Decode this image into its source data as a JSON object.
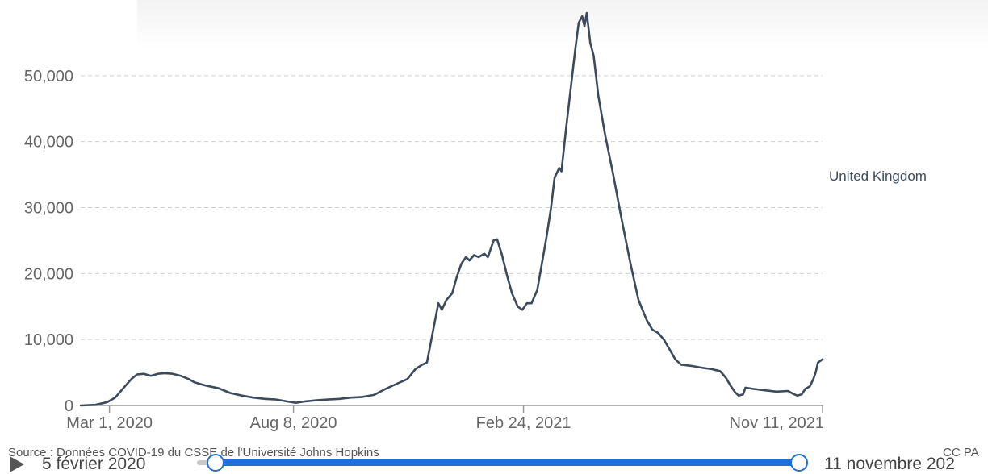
{
  "chart_data": {
    "type": "line",
    "title": "",
    "xlabel": "",
    "ylabel": "",
    "x_ticks": [
      "Mar 1, 2020",
      "Aug 8, 2020",
      "Feb 24, 2021",
      "Nov 11, 2021"
    ],
    "x_range": [
      "2020-02-05",
      "2021-11-11"
    ],
    "y_ticks": [
      "0",
      "10,000",
      "20,000",
      "30,000",
      "40,000",
      "50,000"
    ],
    "ylim": [
      0,
      60000
    ],
    "grid": true,
    "series": [
      {
        "name": "United Kingdom",
        "color": "#3c4a5e",
        "points": [
          [
            "2020-02-05",
            0
          ],
          [
            "2020-02-18",
            100
          ],
          [
            "2020-02-28",
            500
          ],
          [
            "2020-03-06",
            1200
          ],
          [
            "2020-03-13",
            2600
          ],
          [
            "2020-03-20",
            4000
          ],
          [
            "2020-03-25",
            4700
          ],
          [
            "2020-03-31",
            4800
          ],
          [
            "2020-04-06",
            4500
          ],
          [
            "2020-04-12",
            4800
          ],
          [
            "2020-04-18",
            4900
          ],
          [
            "2020-04-25",
            4800
          ],
          [
            "2020-05-02",
            4500
          ],
          [
            "2020-05-09",
            4000
          ],
          [
            "2020-05-14",
            3500
          ],
          [
            "2020-05-24",
            3000
          ],
          [
            "2020-06-04",
            2600
          ],
          [
            "2020-06-14",
            1900
          ],
          [
            "2020-06-24",
            1500
          ],
          [
            "2020-07-04",
            1200
          ],
          [
            "2020-07-14",
            1000
          ],
          [
            "2020-07-24",
            900
          ],
          [
            "2020-08-03",
            600
          ],
          [
            "2020-08-10",
            400
          ],
          [
            "2020-08-17",
            600
          ],
          [
            "2020-08-28",
            800
          ],
          [
            "2020-09-07",
            900
          ],
          [
            "2020-09-17",
            1000
          ],
          [
            "2020-09-27",
            1200
          ],
          [
            "2020-10-07",
            1300
          ],
          [
            "2020-10-17",
            1600
          ],
          [
            "2020-10-27",
            2500
          ],
          [
            "2020-11-06",
            3300
          ],
          [
            "2020-11-15",
            4000
          ],
          [
            "2020-11-22",
            5500
          ],
          [
            "2020-11-28",
            6200
          ],
          [
            "2020-12-02",
            6500
          ],
          [
            "2020-12-07",
            11000
          ],
          [
            "2020-12-12",
            15500
          ],
          [
            "2020-12-15",
            14500
          ],
          [
            "2020-12-19",
            16000
          ],
          [
            "2020-12-24",
            17000
          ],
          [
            "2020-12-28",
            19500
          ],
          [
            "2021-01-01",
            21500
          ],
          [
            "2021-01-05",
            22500
          ],
          [
            "2021-01-08",
            22000
          ],
          [
            "2021-01-12",
            22800
          ],
          [
            "2021-01-16",
            22500
          ],
          [
            "2021-01-21",
            23000
          ],
          [
            "2021-01-24",
            22500
          ],
          [
            "2021-01-29",
            25000
          ],
          [
            "2021-02-01",
            25200
          ],
          [
            "2021-02-05",
            23000
          ],
          [
            "2021-02-10",
            19500
          ],
          [
            "2021-02-14",
            17000
          ],
          [
            "2021-02-19",
            15000
          ],
          [
            "2021-02-23",
            14500
          ],
          [
            "2021-02-27",
            15500
          ],
          [
            "2021-03-03",
            15500
          ],
          [
            "2021-03-08",
            17500
          ],
          [
            "2021-03-12",
            21500
          ],
          [
            "2021-03-16",
            25500
          ],
          [
            "2021-03-20",
            30000
          ],
          [
            "2021-03-23",
            34500
          ],
          [
            "2021-03-27",
            36000
          ],
          [
            "2021-03-29",
            35500
          ],
          [
            "2021-04-02",
            42000
          ],
          [
            "2021-04-06",
            48000
          ],
          [
            "2021-04-10",
            54000
          ],
          [
            "2021-04-13",
            58000
          ],
          [
            "2021-04-16",
            59000
          ],
          [
            "2021-04-18",
            57500
          ],
          [
            "2021-04-20",
            59500
          ],
          [
            "2021-04-23",
            55000
          ],
          [
            "2021-04-26",
            53000
          ],
          [
            "2021-04-30",
            47000
          ],
          [
            "2021-05-06",
            41000
          ],
          [
            "2021-05-13",
            35000
          ],
          [
            "2021-05-20",
            28500
          ],
          [
            "2021-05-28",
            21500
          ],
          [
            "2021-06-04",
            16000
          ],
          [
            "2021-06-11",
            13000
          ],
          [
            "2021-06-16",
            11500
          ],
          [
            "2021-06-21",
            11000
          ],
          [
            "2021-06-26",
            10000
          ],
          [
            "2021-07-01",
            8500
          ],
          [
            "2021-07-06",
            7000
          ],
          [
            "2021-07-11",
            6200
          ],
          [
            "2021-07-20",
            6000
          ],
          [
            "2021-07-30",
            5700
          ],
          [
            "2021-08-07",
            5500
          ],
          [
            "2021-08-14",
            5200
          ],
          [
            "2021-08-19",
            4200
          ],
          [
            "2021-08-23",
            3000
          ],
          [
            "2021-08-27",
            2000
          ],
          [
            "2021-08-30",
            1500
          ],
          [
            "2021-09-03",
            1700
          ],
          [
            "2021-09-05",
            2700
          ],
          [
            "2021-09-12",
            2500
          ],
          [
            "2021-09-22",
            2300
          ],
          [
            "2021-10-02",
            2100
          ],
          [
            "2021-10-12",
            2200
          ],
          [
            "2021-10-16",
            1800
          ],
          [
            "2021-10-20",
            1500
          ],
          [
            "2021-10-24",
            1700
          ],
          [
            "2021-10-27",
            2500
          ],
          [
            "2021-10-31",
            2900
          ],
          [
            "2021-11-03",
            4000
          ],
          [
            "2021-11-05",
            5000
          ],
          [
            "2021-11-07",
            6500
          ],
          [
            "2021-11-11",
            7000
          ]
        ]
      }
    ]
  },
  "source_text": "Source : Données COVID-19 du CSSE de l'Université Johns Hopkins",
  "license_text": "CC PA",
  "timeline": {
    "play_icon": "play-icon",
    "start_label": "5 février 2020",
    "end_label": "11 novembre 202",
    "range_start_fraction": 0,
    "range_end_fraction": 1,
    "accent_color": "#1f6fd6"
  }
}
